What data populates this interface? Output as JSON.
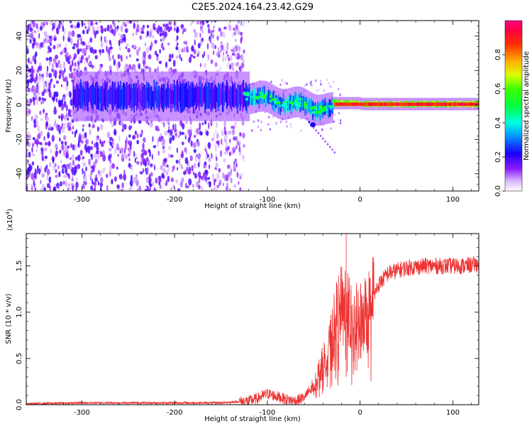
{
  "title": "C2E5.2024.164.23.42.G29",
  "chart_data": [
    {
      "type": "heatmap",
      "xlabel": "Height of straight line (km)",
      "ylabel": "Frequency (Hz)",
      "xlim": [
        -360,
        128
      ],
      "ylim": [
        -50,
        49
      ],
      "xticks": [
        -300,
        -200,
        -100,
        0,
        100
      ],
      "yticks": [
        -40,
        -20,
        0,
        20,
        40
      ],
      "colorbar": {
        "label": "Normalized spectral amplitude",
        "range": [
          0,
          1
        ],
        "ticks": [
          "0.0",
          "0.2",
          "0.4",
          "0.6",
          "0.8"
        ],
        "tick_values": [
          0.0,
          0.2,
          0.4,
          0.6,
          0.8
        ],
        "colormap": "gist_rainbow (white-violet-blue-cyan-green-yellow-orange-red-magenta)"
      },
      "features": [
        {
          "x_range": [
            -360,
            -130
          ],
          "freq_range": [
            -50,
            49
          ],
          "amplitude": "low (0.05-0.2), speckled noise"
        },
        {
          "x_range": [
            -310,
            -120
          ],
          "center_freq": 5,
          "amplitude": "0.15-0.4"
        },
        {
          "x_range": [
            -120,
            -30
          ],
          "center_freq": 0,
          "freq_slope": "slightly negative",
          "amplitude": "0.3-0.55"
        },
        {
          "x_range": [
            -30,
            128
          ],
          "center_freq": 0,
          "amplitude": "0.8-0.95 (narrow line)"
        }
      ]
    },
    {
      "type": "line",
      "xlabel": "Height of straight line (km)",
      "ylabel": "SNR (10 * v/v)",
      "y_multiplier": "(x10^4)",
      "xlim": [
        -360,
        128
      ],
      "ylim": [
        0,
        1.85
      ],
      "xticks": [
        -300,
        -200,
        -100,
        0,
        100
      ],
      "yticks": [
        0.0,
        0.5,
        1.0,
        1.5
      ],
      "ytick_labels": [
        "0.0",
        "0.5",
        "1.0",
        "1.5"
      ],
      "series_color": "#ee3333",
      "x": [
        -360,
        -300,
        -200,
        -150,
        -120,
        -110,
        -100,
        -90,
        -80,
        -70,
        -60,
        -50,
        -40,
        -30,
        -25,
        -20,
        -15,
        -10,
        -5,
        0,
        10,
        20,
        30,
        50,
        70,
        90,
        110,
        128
      ],
      "y": [
        0.01,
        0.02,
        0.02,
        0.02,
        0.04,
        0.07,
        0.12,
        0.09,
        0.06,
        0.04,
        0.08,
        0.22,
        0.45,
        0.75,
        0.95,
        1.05,
        1.1,
        0.95,
        0.9,
        0.95,
        1.05,
        1.3,
        1.42,
        1.48,
        1.5,
        1.5,
        1.5,
        1.52
      ]
    }
  ]
}
